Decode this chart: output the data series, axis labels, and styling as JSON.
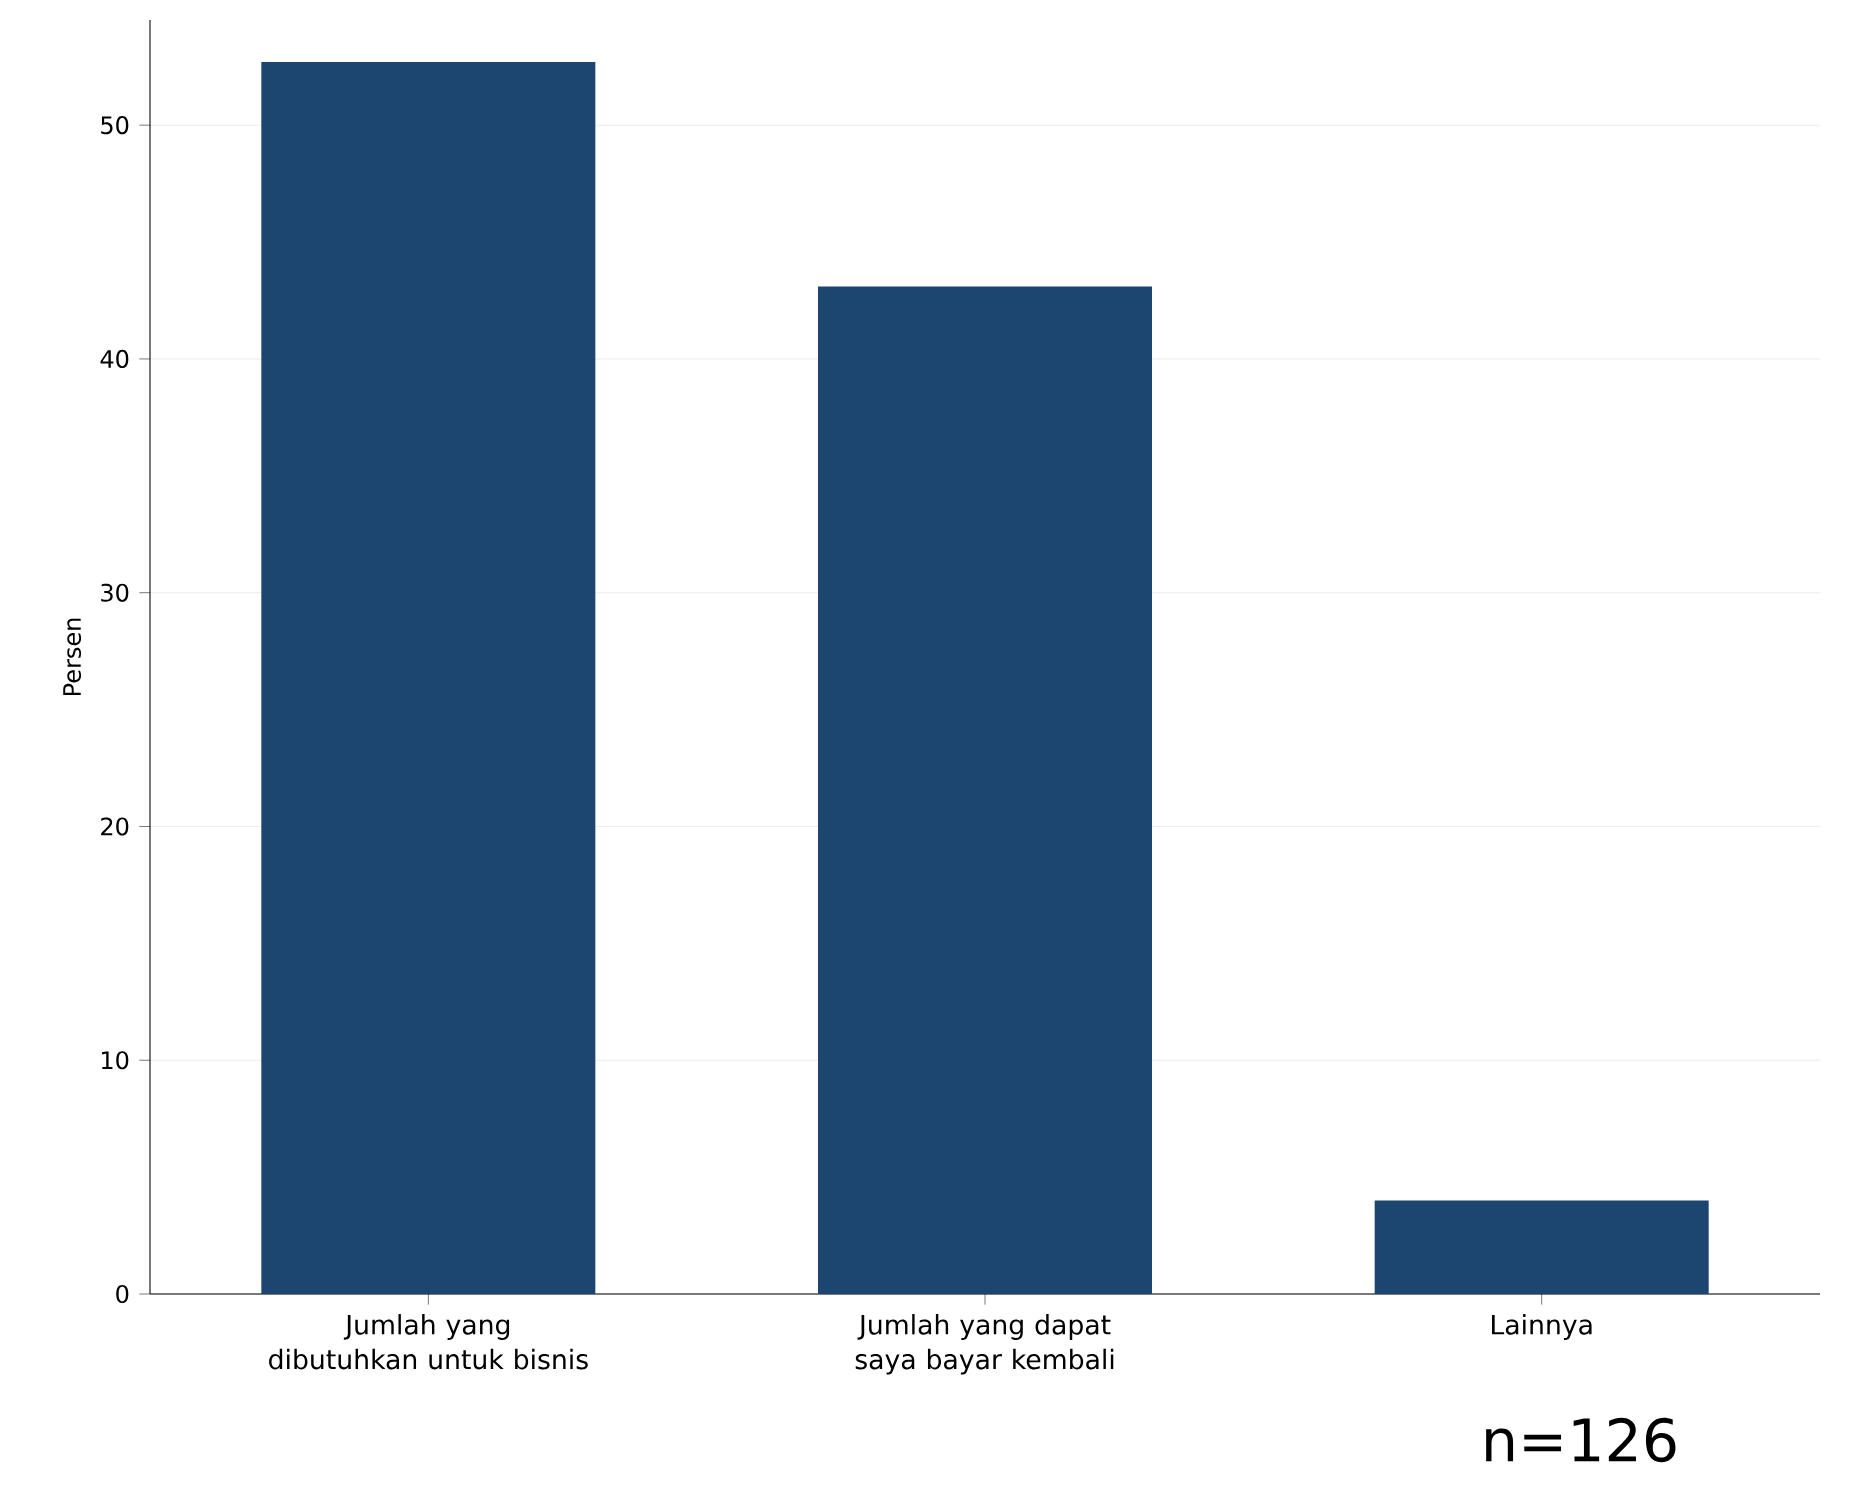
{
  "chart_data": {
    "type": "bar",
    "ylabel": "Persen",
    "categories": [
      "Jumlah yang dibutuhkan untuk bisnis",
      "Jumlah yang dapat saya bayar kembali",
      "Lainnya"
    ],
    "values": [
      52.7,
      43.1,
      4.0
    ],
    "color": "#1c4670",
    "ylim": [
      0,
      54.5
    ],
    "yticks": [
      0,
      10,
      20,
      30,
      40,
      50
    ],
    "grid": "y",
    "annotations": [
      "n=126"
    ]
  }
}
